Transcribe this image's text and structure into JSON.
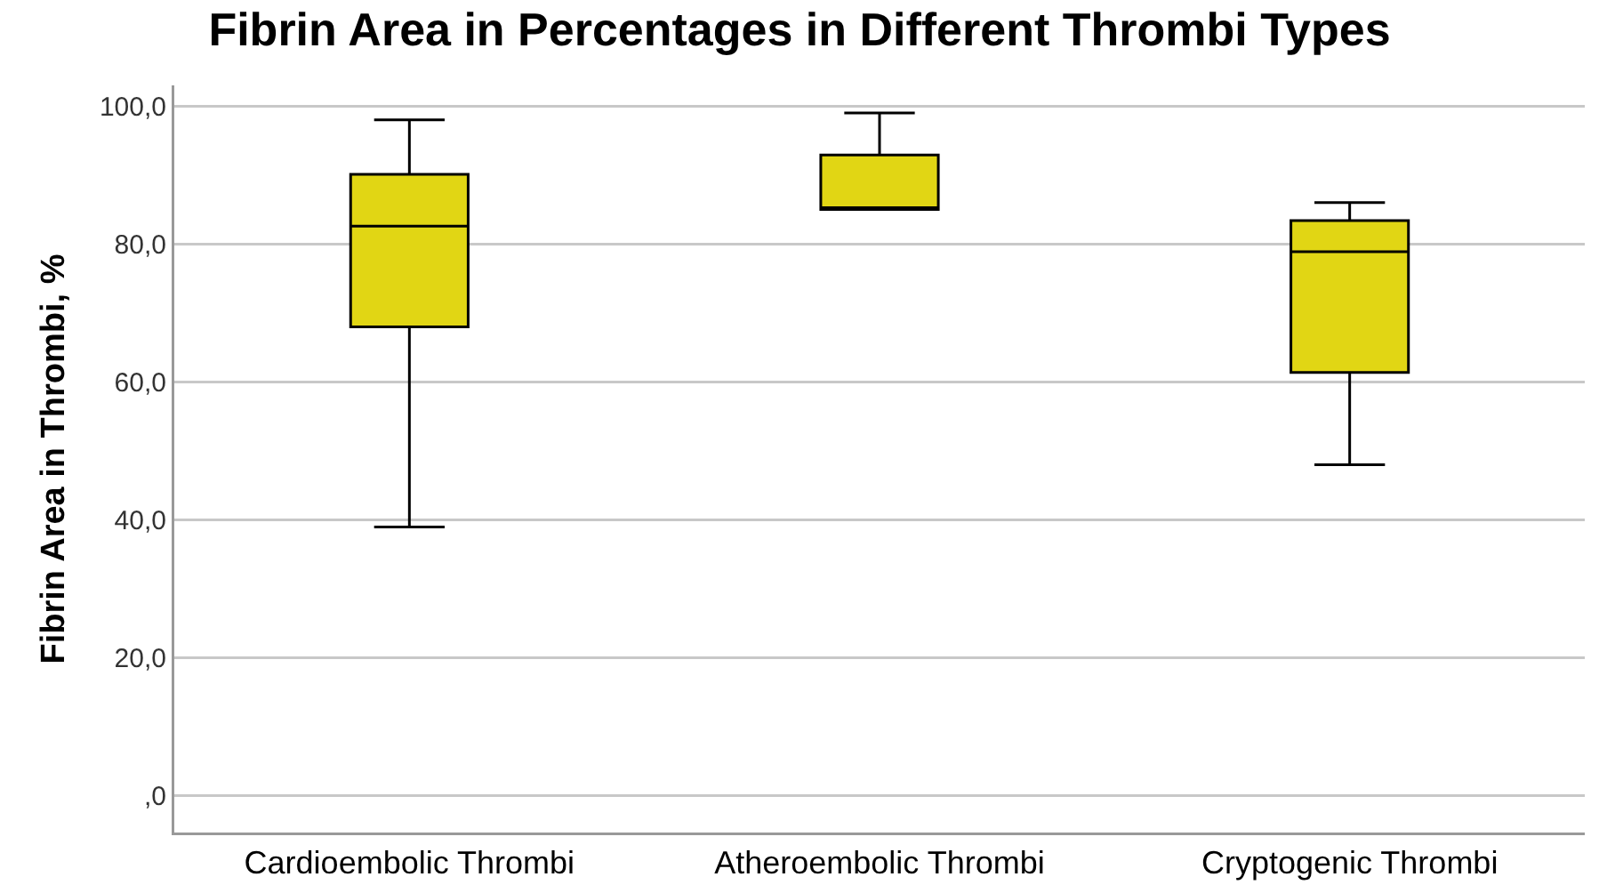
{
  "chart_data": {
    "type": "box",
    "title": "Fibrin Area in Percentages in Different Thrombi Types",
    "ylabel": "Fibrin Area in Thrombi, %",
    "categories": [
      "Cardioembolic Thrombi",
      "Atheroembolic Thrombi",
      "Cryptogenic Thrombi"
    ],
    "boxes": [
      {
        "low": 39.0,
        "q1": 68.0,
        "median": 82.6,
        "q3": 90.1,
        "high": 98.0
      },
      {
        "low": 85.0,
        "q1": 85.0,
        "median": 85.0,
        "q3": 92.9,
        "high": 99.0
      },
      {
        "low": 48.0,
        "q1": 61.4,
        "median": 78.9,
        "q3": 83.4,
        "high": 86.0
      }
    ],
    "color": "#e1d614",
    "ylim": [
      -5.3,
      103
    ],
    "yticks": [
      {
        "value": 0,
        "label": ",0"
      },
      {
        "value": 20,
        "label": "20,0"
      },
      {
        "value": 40,
        "label": "40,0"
      },
      {
        "value": 60,
        "label": "60,0"
      },
      {
        "value": 80,
        "label": "80,0"
      },
      {
        "value": 100,
        "label": "100,0"
      }
    ],
    "grid": "y",
    "legend": false
  }
}
